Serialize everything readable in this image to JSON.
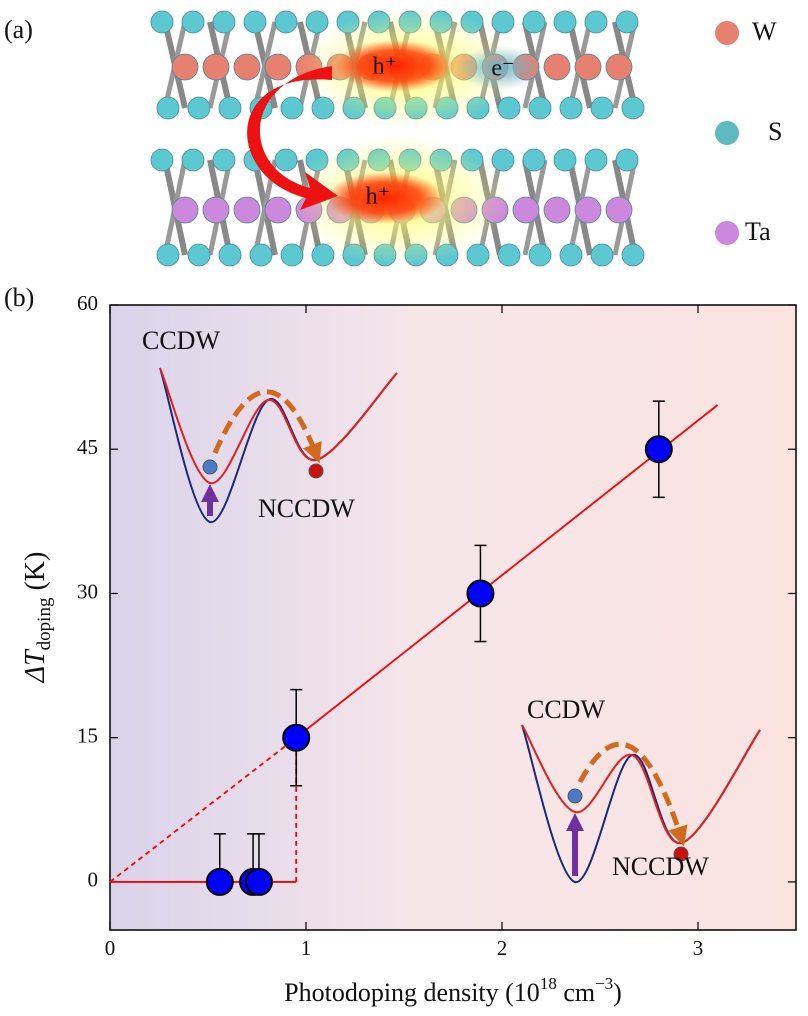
{
  "diagram": {
    "panel_label": "(a)",
    "legend": [
      "W",
      "S",
      "Ta"
    ],
    "carriers": [
      "h⁺",
      "e⁻",
      "h⁺"
    ]
  },
  "chart_data": {
    "type": "scatter",
    "panel_label": "(b)",
    "x_label": [
      "Photodoping density (10",
      "18",
      " cm",
      "−3",
      ")"
    ],
    "y_label": [
      "ΔT",
      "doping",
      " (K)"
    ],
    "x": [
      0.56,
      0.73,
      0.76,
      0.95,
      1.89,
      2.8
    ],
    "values": [
      0,
      0,
      0,
      15,
      30,
      45
    ],
    "error_upper": [
      5,
      5,
      5,
      5,
      5,
      5
    ],
    "error_lower": [
      0,
      0,
      0,
      5,
      5,
      5
    ],
    "color": "#0000ff",
    "lines": [
      {
        "style": "solid",
        "color": "#ff0000",
        "x": [
          0,
          0.95
        ],
        "values": [
          0,
          0
        ]
      },
      {
        "style": "dashed",
        "color": "#ff0000",
        "x": [
          0.95,
          0.95
        ],
        "values": [
          0,
          15
        ]
      },
      {
        "style": "dashed",
        "color": "#ff0000",
        "x": [
          0,
          0.95
        ],
        "values": [
          0,
          15
        ]
      },
      {
        "style": "solid",
        "color": "#ff0000",
        "x": [
          0.95,
          3.1
        ],
        "values": [
          15,
          49.6
        ]
      }
    ],
    "annotations": [
      "CCDW",
      "NCCDW",
      "CCDW",
      "NCCDW"
    ],
    "xlim": [
      0,
      3.5
    ],
    "ylim": [
      -5,
      60
    ],
    "xticks": [
      0,
      1,
      2,
      3
    ],
    "yticks": [
      0,
      15,
      30,
      45,
      60
    ]
  }
}
